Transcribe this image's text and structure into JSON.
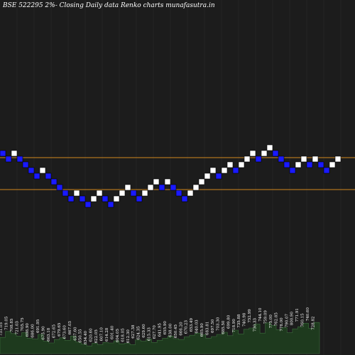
{
  "colors": {
    "background": "#1c1c1c",
    "grid": "#2a2a2a",
    "up_brick": "#ffffff",
    "down_brick": "#1a1aff",
    "brick_stroke": "#000000",
    "ref_line": "#d2891e",
    "volume_fill": "#1e3a1e",
    "volume_stroke": "#3c6e3c",
    "text": "#ffffff"
  },
  "chart_data": {
    "type": "renko",
    "title": "BSE 522295 2%-  Closing Daily data  Renko  charts munafasutra.in",
    "reference_lines": [
      741.2,
      672.8
    ],
    "bricks": [
      {
        "level": 11,
        "dir": "down"
      },
      {
        "level": 10,
        "dir": "down"
      },
      {
        "level": 11,
        "dir": "up"
      },
      {
        "level": 10,
        "dir": "down"
      },
      {
        "level": 9,
        "dir": "down"
      },
      {
        "level": 8,
        "dir": "down"
      },
      {
        "level": 7,
        "dir": "down"
      },
      {
        "level": 8,
        "dir": "up"
      },
      {
        "level": 7,
        "dir": "down"
      },
      {
        "level": 6,
        "dir": "down"
      },
      {
        "level": 5,
        "dir": "down"
      },
      {
        "level": 4,
        "dir": "down"
      },
      {
        "level": 3,
        "dir": "down"
      },
      {
        "level": 4,
        "dir": "up"
      },
      {
        "level": 3,
        "dir": "down"
      },
      {
        "level": 2,
        "dir": "down"
      },
      {
        "level": 3,
        "dir": "up"
      },
      {
        "level": 4,
        "dir": "up"
      },
      {
        "level": 3,
        "dir": "down"
      },
      {
        "level": 2,
        "dir": "down"
      },
      {
        "level": 3,
        "dir": "up"
      },
      {
        "level": 4,
        "dir": "up"
      },
      {
        "level": 5,
        "dir": "up"
      },
      {
        "level": 4,
        "dir": "down"
      },
      {
        "level": 3,
        "dir": "down"
      },
      {
        "level": 4,
        "dir": "up"
      },
      {
        "level": 5,
        "dir": "up"
      },
      {
        "level": 6,
        "dir": "up"
      },
      {
        "level": 5,
        "dir": "down"
      },
      {
        "level": 6,
        "dir": "up"
      },
      {
        "level": 5,
        "dir": "down"
      },
      {
        "level": 4,
        "dir": "down"
      },
      {
        "level": 3,
        "dir": "down"
      },
      {
        "level": 4,
        "dir": "up"
      },
      {
        "level": 5,
        "dir": "up"
      },
      {
        "level": 6,
        "dir": "up"
      },
      {
        "level": 7,
        "dir": "up"
      },
      {
        "level": 8,
        "dir": "up"
      },
      {
        "level": 7,
        "dir": "down"
      },
      {
        "level": 8,
        "dir": "up"
      },
      {
        "level": 9,
        "dir": "up"
      },
      {
        "level": 8,
        "dir": "down"
      },
      {
        "level": 9,
        "dir": "up"
      },
      {
        "level": 10,
        "dir": "up"
      },
      {
        "level": 11,
        "dir": "up"
      },
      {
        "level": 10,
        "dir": "down"
      },
      {
        "level": 11,
        "dir": "up"
      },
      {
        "level": 12,
        "dir": "up"
      },
      {
        "level": 11,
        "dir": "down"
      },
      {
        "level": 10,
        "dir": "down"
      },
      {
        "level": 9,
        "dir": "down"
      },
      {
        "level": 8,
        "dir": "down"
      },
      {
        "level": 9,
        "dir": "up"
      },
      {
        "level": 10,
        "dir": "up"
      },
      {
        "level": 9,
        "dir": "down"
      },
      {
        "level": 10,
        "dir": "up"
      },
      {
        "level": 9,
        "dir": "down"
      },
      {
        "level": 8,
        "dir": "down"
      },
      {
        "level": 9,
        "dir": "up"
      },
      {
        "level": 10,
        "dir": "up"
      }
    ],
    "volume_labels": [
      "731.05",
      "719.05",
      "708.85",
      "721.03",
      "705.75",
      "698.90",
      "686.00",
      "691.95",
      "675.90",
      "663.18",
      "672.65",
      "679.65",
      "673.60",
      "667.03",
      "657.60",
      "650.55",
      "634.40",
      "620.60",
      "622.05",
      "607.10",
      "614.28",
      "601.40",
      "604.05",
      "618.05",
      "612.30",
      "627.38",
      "624.35",
      "629.60",
      "615.33",
      "627.70",
      "641.95",
      "655.90",
      "638.00",
      "650.45",
      "666.20",
      "670.23",
      "653.49",
      "640.03",
      "665.90",
      "683.81",
      "697.50",
      "703.30",
      "685.50",
      "699.80",
      "718.90",
      "735.88",
      "740.98",
      "752.99",
      "730.33",
      "744.10",
      "759.09",
      "775.00",
      "762.85",
      "778.00",
      "790.07",
      "800.90",
      "771.91",
      "760.15",
      "740.60",
      "728.82"
    ],
    "volume_levels": [
      0.38,
      0.52,
      0.47,
      0.41,
      0.49,
      0.36,
      0.34,
      0.45,
      0.29,
      0.25,
      0.33,
      0.37,
      0.31,
      0.41,
      0.27,
      0.22,
      0.18,
      0.24,
      0.21,
      0.26,
      0.25,
      0.3,
      0.23,
      0.24,
      0.21,
      0.32,
      0.29,
      0.34,
      0.26,
      0.31,
      0.36,
      0.41,
      0.35,
      0.33,
      0.39,
      0.43,
      0.48,
      0.44,
      0.36,
      0.4,
      0.45,
      0.5,
      0.42,
      0.55,
      0.46,
      0.57,
      0.6,
      0.69,
      0.48,
      0.72,
      0.66,
      0.56,
      0.61,
      0.49,
      0.58,
      0.63,
      0.71,
      0.59,
      0.73,
      0.52
    ]
  }
}
